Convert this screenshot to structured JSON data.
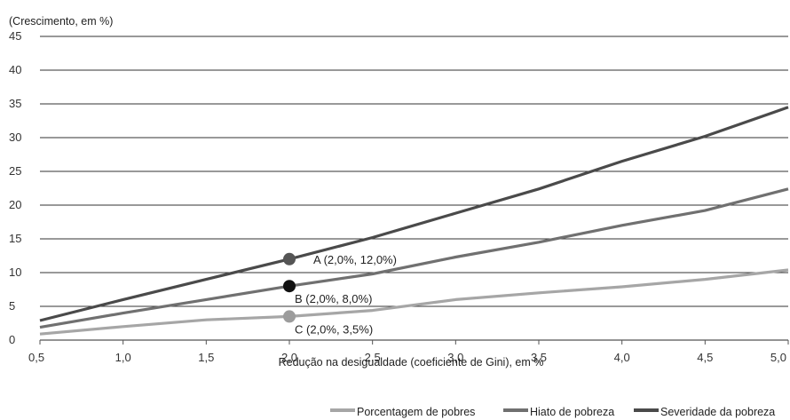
{
  "chart_data": {
    "type": "line",
    "title": "",
    "ylabel": "(Crescimento, em %)",
    "xlabel": "Redução na desigualdade (coeficiente de Gini), em %",
    "xlim": [
      0.5,
      5.0
    ],
    "ylim": [
      0,
      45
    ],
    "x_ticks": [
      "0,5",
      "1,0",
      "1,5",
      "2,0",
      "2,5",
      "3,0",
      "3,5",
      "4,0",
      "4,5",
      "5,0"
    ],
    "y_ticks": [
      "0",
      "5",
      "10",
      "15",
      "20",
      "25",
      "30",
      "35",
      "40",
      "45"
    ],
    "grid": "horizontal",
    "legend_position": "bottom-right",
    "x": [
      0.5,
      1.0,
      1.5,
      2.0,
      2.5,
      3.0,
      3.5,
      4.0,
      4.5,
      5.0
    ],
    "series": [
      {
        "name": "Porcentagem de pobres",
        "color": "#a6a6a6",
        "values": [
          0.9,
          2.0,
          3.0,
          3.5,
          4.4,
          6.0,
          7.0,
          7.9,
          9.0,
          10.4
        ]
      },
      {
        "name": "Hiato de pobreza",
        "color": "#707070",
        "values": [
          1.9,
          4.0,
          6.0,
          8.0,
          9.8,
          12.3,
          14.5,
          17.0,
          19.2,
          22.4
        ]
      },
      {
        "name": "Severidade da pobreza",
        "color": "#4a4a4a",
        "values": [
          2.9,
          6.0,
          9.0,
          12.0,
          15.2,
          18.8,
          22.4,
          26.5,
          30.2,
          34.5
        ]
      }
    ],
    "annotations": [
      {
        "label": "A (2,0%, 12,0%)",
        "x": 2.0,
        "y": 12.0,
        "color": "#555555"
      },
      {
        "label": "B (2,0%, 8,0%)",
        "x": 2.0,
        "y": 8.0,
        "color": "#111111"
      },
      {
        "label": "C (2,0%, 3,5%)",
        "x": 2.0,
        "y": 3.5,
        "color": "#9c9c9c"
      }
    ]
  }
}
